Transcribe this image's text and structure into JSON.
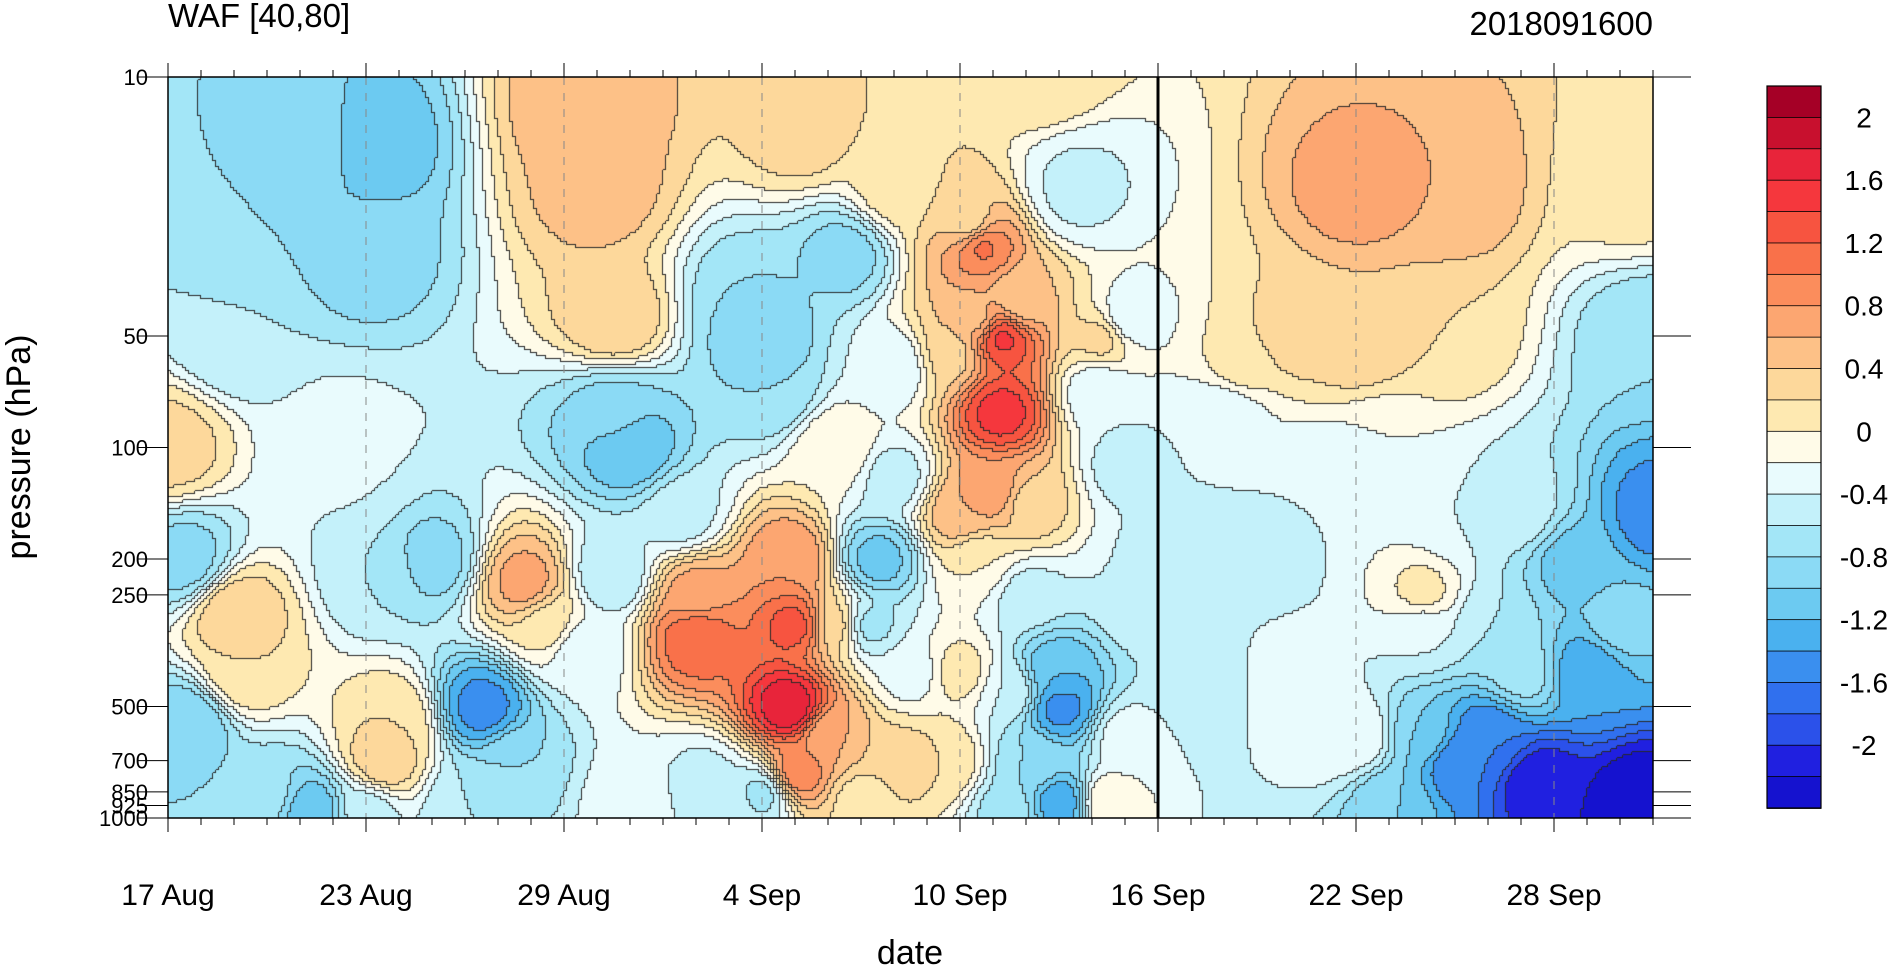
{
  "chart_data": {
    "type": "heatmap",
    "title_left": "WAF [40,80]",
    "title_right": "2018091600",
    "xlabel": "date",
    "ylabel": "pressure (hPa)",
    "x_start": "17 Aug",
    "x_end": "2 Oct",
    "x_major_ticks": [
      "17 Aug",
      "23 Aug",
      "29 Aug",
      "4 Sep",
      "10 Sep",
      "16 Sep",
      "22 Sep",
      "28 Sep"
    ],
    "y_scale": "log",
    "ylim": [
      1000,
      10
    ],
    "y_ticks": [
      "10",
      "50",
      "100",
      "200",
      "250",
      "500",
      "700",
      "850",
      "925",
      "1000"
    ],
    "current_date_line": "16 Sep",
    "colorbar": {
      "labels": [
        "2",
        "1.6",
        "1.2",
        "0.8",
        "0.4",
        "0",
        "-0.4",
        "-0.8",
        "-1.2",
        "-1.6",
        "-2"
      ],
      "levels": [
        2.2,
        2.0,
        1.8,
        1.6,
        1.4,
        1.2,
        1.0,
        0.8,
        0.6,
        0.4,
        0.2,
        0,
        -0.2,
        -0.4,
        -0.6,
        -0.8,
        -1.0,
        -1.2,
        -1.4,
        -1.6,
        -1.8,
        -2.0,
        -2.2
      ],
      "colors": [
        "#a50026",
        "#c8102e",
        "#e8243a",
        "#f5373d",
        "#f75440",
        "#f9714a",
        "#fb8d5c",
        "#fca671",
        "#fdc187",
        "#fdd89b",
        "#fee9b1",
        "#fffbe8",
        "#e9fbfd",
        "#c4f1fa",
        "#a3e6f7",
        "#8bdaf5",
        "#6ccaf1",
        "#4ab1ef",
        "#3a8fef",
        "#3070ee",
        "#2b51ea",
        "#2020e0",
        "#1512cf"
      ]
    },
    "field_features": [
      {
        "date_day": 20.5,
        "p": 30,
        "value": -0.7
      },
      {
        "date_day": 27.5,
        "p": 20,
        "value": -0.6
      },
      {
        "date_day": 44.5,
        "p": 20,
        "value": 0.3
      },
      {
        "date_day": 12.6,
        "p": 12,
        "value": 0.8
      },
      {
        "date_day": 13.0,
        "p": 20,
        "value": 0.7
      },
      {
        "date_day": 13.5,
        "p": 45,
        "value": 0.6
      },
      {
        "date_day": 19.2,
        "p": 14,
        "value": 0.5
      },
      {
        "date_day": 22.0,
        "p": 20,
        "value": 0.3
      },
      {
        "date_day": 24.3,
        "p": 25,
        "value": 0.4
      },
      {
        "date_day": 24.5,
        "p": 45,
        "value": 0.7
      },
      {
        "date_day": 23.7,
        "p": 55,
        "value": 0.5
      },
      {
        "date_day": 24.0,
        "p": 150,
        "value": 0.8
      },
      {
        "date_day": 24.6,
        "p": 28,
        "value": 1.3
      },
      {
        "date_day": 25.2,
        "p": 50,
        "value": 1.7
      },
      {
        "date_day": 25.2,
        "p": 80,
        "value": 1.7
      },
      {
        "date_day": 25.0,
        "p": 130,
        "value": 1.0
      },
      {
        "date_day": 25.8,
        "p": 40,
        "value": 0.6
      },
      {
        "date_day": 26.0,
        "p": 140,
        "value": 0.5
      },
      {
        "date_day": 28.3,
        "p": 50,
        "value": 0.5
      },
      {
        "date_day": 26.5,
        "p": 10,
        "value": 0.4
      },
      {
        "date_day": 28.2,
        "p": 70,
        "value": -0.2
      },
      {
        "date_day": 22.0,
        "p": 60,
        "value": -0.2
      },
      {
        "date_day": 22.5,
        "p": 400,
        "value": -0.1
      },
      {
        "date_day": 29.0,
        "p": 110,
        "value": -0.3
      },
      {
        "date_day": 30.0,
        "p": 200,
        "value": -0.2
      },
      {
        "date_day": 31.0,
        "p": 100,
        "value": -0.2
      },
      {
        "date_day": 32.0,
        "p": 80,
        "value": -0.2
      },
      {
        "date_day": 2.0,
        "p": 50,
        "value": -0.4
      },
      {
        "date_day": 1.5,
        "p": 20,
        "value": -0.6
      },
      {
        "date_day": 4.5,
        "p": 15,
        "value": -0.6
      },
      {
        "date_day": 6.0,
        "p": 15,
        "value": -1.0
      },
      {
        "date_day": 6.0,
        "p": 30,
        "value": -0.7
      },
      {
        "date_day": 5.5,
        "p": 120,
        "value": -0.2
      },
      {
        "date_day": 5.0,
        "p": 100,
        "value": -0.1
      },
      {
        "date_day": 0.0,
        "p": 100,
        "value": 0.5
      },
      {
        "date_day": 0.5,
        "p": 200,
        "value": -0.7
      },
      {
        "date_day": 0.6,
        "p": 550,
        "value": -0.8
      },
      {
        "date_day": 2.0,
        "p": 280,
        "value": 0.6
      },
      {
        "date_day": 2.2,
        "p": 400,
        "value": 0.4
      },
      {
        "date_day": 3.0,
        "p": 870,
        "value": -0.5
      },
      {
        "date_day": 4.3,
        "p": 960,
        "value": -1.0
      },
      {
        "date_day": 6.3,
        "p": 220,
        "value": -0.4
      },
      {
        "date_day": 8.0,
        "p": 200,
        "value": -0.7
      },
      {
        "date_day": 6.8,
        "p": 550,
        "value": 0.4
      },
      {
        "date_day": 6.5,
        "p": 700,
        "value": 0.6
      },
      {
        "date_day": 9.5,
        "p": 500,
        "value": -1.3
      },
      {
        "date_day": 10.5,
        "p": 700,
        "value": -0.6
      },
      {
        "date_day": 9.0,
        "p": 900,
        "value": -0.4
      },
      {
        "date_day": 6.0,
        "p": 950,
        "value": -0.3
      },
      {
        "date_day": 10.8,
        "p": 230,
        "value": 0.9
      },
      {
        "date_day": 11.5,
        "p": 300,
        "value": 0.3
      },
      {
        "date_day": 13.4,
        "p": 220,
        "value": -0.4
      },
      {
        "date_day": 12.5,
        "p": 350,
        "value": -0.2
      },
      {
        "date_day": 14.0,
        "p": 100,
        "value": -1.0
      },
      {
        "date_day": 13.5,
        "p": 80,
        "value": -0.7
      },
      {
        "date_day": 15.5,
        "p": 150,
        "value": -0.3
      },
      {
        "date_day": 16.0,
        "p": 250,
        "value": 0.9
      },
      {
        "date_day": 16.0,
        "p": 320,
        "value": 1.4
      },
      {
        "date_day": 16.3,
        "p": 800,
        "value": -0.3
      },
      {
        "date_day": 14.0,
        "p": 900,
        "value": -0.1
      },
      {
        "date_day": 18.0,
        "p": 50,
        "value": -0.8
      },
      {
        "date_day": 17.6,
        "p": 40,
        "value": -0.6
      },
      {
        "date_day": 18.3,
        "p": 70,
        "value": -0.6
      },
      {
        "date_day": 18.8,
        "p": 200,
        "value": 1.0
      },
      {
        "date_day": 19.0,
        "p": 300,
        "value": 1.5
      },
      {
        "date_day": 18.8,
        "p": 500,
        "value": 2.0
      },
      {
        "date_day": 19.0,
        "p": 750,
        "value": 1.2
      },
      {
        "date_day": 20.0,
        "p": 600,
        "value": 0.8
      },
      {
        "date_day": 20.2,
        "p": 300,
        "value": 0.5
      },
      {
        "date_day": 20.2,
        "p": 100,
        "value": 0.2
      },
      {
        "date_day": 21.5,
        "p": 200,
        "value": -0.9
      },
      {
        "date_day": 21.2,
        "p": 300,
        "value": -0.5
      },
      {
        "date_day": 22.0,
        "p": 120,
        "value": -0.3
      },
      {
        "date_day": 21.0,
        "p": 900,
        "value": 0.3
      },
      {
        "date_day": 18.0,
        "p": 850,
        "value": -0.5
      },
      {
        "date_day": 17.0,
        "p": 960,
        "value": -0.3
      },
      {
        "date_day": 22.3,
        "p": 700,
        "value": 0.5
      },
      {
        "date_day": 23.5,
        "p": 700,
        "value": 0.4
      },
      {
        "date_day": 24.0,
        "p": 400,
        "value": 0.3
      },
      {
        "date_day": 25.5,
        "p": 450,
        "value": -0.2
      },
      {
        "date_day": 26.8,
        "p": 400,
        "value": -1.0
      },
      {
        "date_day": 27.0,
        "p": 500,
        "value": -1.3
      },
      {
        "date_day": 27.0,
        "p": 900,
        "value": -1.2
      },
      {
        "date_day": 26.2,
        "p": 700,
        "value": -0.6
      },
      {
        "date_day": 25.5,
        "p": 950,
        "value": -0.5
      },
      {
        "date_day": 26.0,
        "p": 250,
        "value": -0.3
      },
      {
        "date_day": 24.5,
        "p": 200,
        "value": 0.2
      },
      {
        "date_day": 27.5,
        "p": 20,
        "value": 0.1
      },
      {
        "date_day": 29.0,
        "p": 45,
        "value": -0.2
      },
      {
        "date_day": 29.5,
        "p": 250,
        "value": -0.2
      },
      {
        "date_day": 29.0,
        "p": 600,
        "value": -0.1
      },
      {
        "date_day": 28.4,
        "p": 900,
        "value": 0.2
      },
      {
        "date_day": 30.5,
        "p": 200,
        "value": -0.4
      },
      {
        "date_day": 31.0,
        "p": 400,
        "value": -0.4
      },
      {
        "date_day": 32.5,
        "p": 60,
        "value": 0.3
      },
      {
        "date_day": 34.0,
        "p": 50,
        "value": 0.5
      },
      {
        "date_day": 36.0,
        "p": 50,
        "value": 0.6
      },
      {
        "date_day": 36.0,
        "p": 20,
        "value": 0.9
      },
      {
        "date_day": 38.5,
        "p": 20,
        "value": 0.8
      },
      {
        "date_day": 38.5,
        "p": 50,
        "value": 0.4
      },
      {
        "date_day": 37.0,
        "p": 100,
        "value": 0.0
      },
      {
        "date_day": 35.0,
        "p": 120,
        "value": -0.2
      },
      {
        "date_day": 33.0,
        "p": 200,
        "value": -0.3
      },
      {
        "date_day": 34.0,
        "p": 400,
        "value": -0.1
      },
      {
        "date_day": 35.0,
        "p": 600,
        "value": -0.1
      },
      {
        "date_day": 38.0,
        "p": 300,
        "value": -0.2
      },
      {
        "date_day": 38.0,
        "p": 250,
        "value": 0.3
      },
      {
        "date_day": 36.0,
        "p": 600,
        "value": 0.0
      },
      {
        "date_day": 39.0,
        "p": 150,
        "value": -0.2
      },
      {
        "date_day": 38.0,
        "p": 600,
        "value": -0.8
      },
      {
        "date_day": 39.0,
        "p": 700,
        "value": -1.4
      },
      {
        "date_day": 40.0,
        "p": 600,
        "value": -1.4
      },
      {
        "date_day": 41.5,
        "p": 800,
        "value": -2.0
      },
      {
        "date_day": 44.5,
        "p": 900,
        "value": -2.2
      },
      {
        "date_day": 43.0,
        "p": 400,
        "value": -1.2
      },
      {
        "date_day": 45.0,
        "p": 150,
        "value": -1.3
      },
      {
        "date_day": 45.0,
        "p": 50,
        "value": -0.6
      },
      {
        "date_day": 41.0,
        "p": 150,
        "value": -0.3
      },
      {
        "date_day": 41.0,
        "p": 400,
        "value": -0.5
      },
      {
        "date_day": 42.5,
        "p": 200,
        "value": -0.9
      },
      {
        "date_day": 44.0,
        "p": 300,
        "value": -0.7
      },
      {
        "date_day": 40.0,
        "p": 300,
        "value": -0.4
      },
      {
        "date_day": 37.0,
        "p": 900,
        "value": -0.8
      }
    ]
  }
}
